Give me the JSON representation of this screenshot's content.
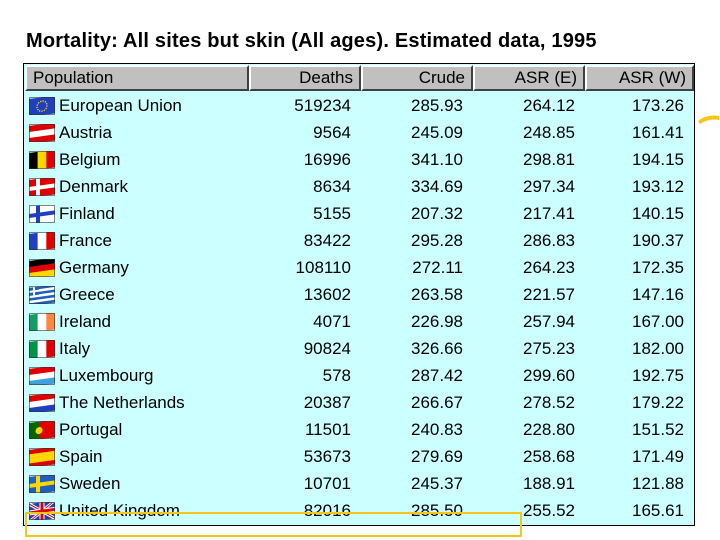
{
  "title": "Mortality: All sites but skin (All ages). Estimated data, 1995",
  "table": {
    "columns": [
      "Population",
      "Deaths",
      "Crude",
      "ASR (E)",
      "ASR (W)"
    ],
    "rows": [
      {
        "population": "European Union",
        "deaths": "519234",
        "crude": "285.93",
        "asr_e": "264.12",
        "asr_w": "173.26",
        "flag_icon": "eu-flag-icon"
      },
      {
        "population": "Austria",
        "deaths": "9564",
        "crude": "245.09",
        "asr_e": "248.85",
        "asr_w": "161.41",
        "flag_icon": "austria-flag-icon"
      },
      {
        "population": "Belgium",
        "deaths": "16996",
        "crude": "341.10",
        "asr_e": "298.81",
        "asr_w": "194.15",
        "flag_icon": "belgium-flag-icon"
      },
      {
        "population": "Denmark",
        "deaths": "8634",
        "crude": "334.69",
        "asr_e": "297.34",
        "asr_w": "193.12",
        "flag_icon": "denmark-flag-icon"
      },
      {
        "population": "Finland",
        "deaths": "5155",
        "crude": "207.32",
        "asr_e": "217.41",
        "asr_w": "140.15",
        "flag_icon": "finland-flag-icon"
      },
      {
        "population": "France",
        "deaths": "83422",
        "crude": "295.28",
        "asr_e": "286.83",
        "asr_w": "190.37",
        "flag_icon": "france-flag-icon"
      },
      {
        "population": "Germany",
        "deaths": "108110",
        "crude": "272.11",
        "asr_e": "264.23",
        "asr_w": "172.35",
        "flag_icon": "germany-flag-icon"
      },
      {
        "population": "Greece",
        "deaths": "13602",
        "crude": "263.58",
        "asr_e": "221.57",
        "asr_w": "147.16",
        "flag_icon": "greece-flag-icon"
      },
      {
        "population": "Ireland",
        "deaths": "4071",
        "crude": "226.98",
        "asr_e": "257.94",
        "asr_w": "167.00",
        "flag_icon": "ireland-flag-icon"
      },
      {
        "population": "Italy",
        "deaths": "90824",
        "crude": "326.66",
        "asr_e": "275.23",
        "asr_w": "182.00",
        "flag_icon": "italy-flag-icon"
      },
      {
        "population": "Luxembourg",
        "deaths": "578",
        "crude": "287.42",
        "asr_e": "299.60",
        "asr_w": "192.75",
        "flag_icon": "luxembourg-flag-icon"
      },
      {
        "population": "The Netherlands",
        "deaths": "20387",
        "crude": "266.67",
        "asr_e": "278.52",
        "asr_w": "179.22",
        "flag_icon": "netherlands-flag-icon"
      },
      {
        "population": "Portugal",
        "deaths": "11501",
        "crude": "240.83",
        "asr_e": "228.80",
        "asr_w": "151.52",
        "flag_icon": "portugal-flag-icon"
      },
      {
        "population": "Spain",
        "deaths": "53673",
        "crude": "279.69",
        "asr_e": "258.68",
        "asr_w": "171.49",
        "flag_icon": "spain-flag-icon"
      },
      {
        "population": "Sweden",
        "deaths": "10701",
        "crude": "245.37",
        "asr_e": "188.91",
        "asr_w": "121.88",
        "flag_icon": "sweden-flag-icon"
      },
      {
        "population": "United Kingdom",
        "deaths": "82016",
        "crude": "285.50",
        "asr_e": "255.52",
        "asr_w": "165.61",
        "flag_icon": "uk-flag-icon"
      }
    ]
  },
  "highlighted_row": "Spain",
  "colors": {
    "table_bg": "#ccffff",
    "header_bg": "#c0c0c0",
    "highlight": "#f5c518"
  }
}
